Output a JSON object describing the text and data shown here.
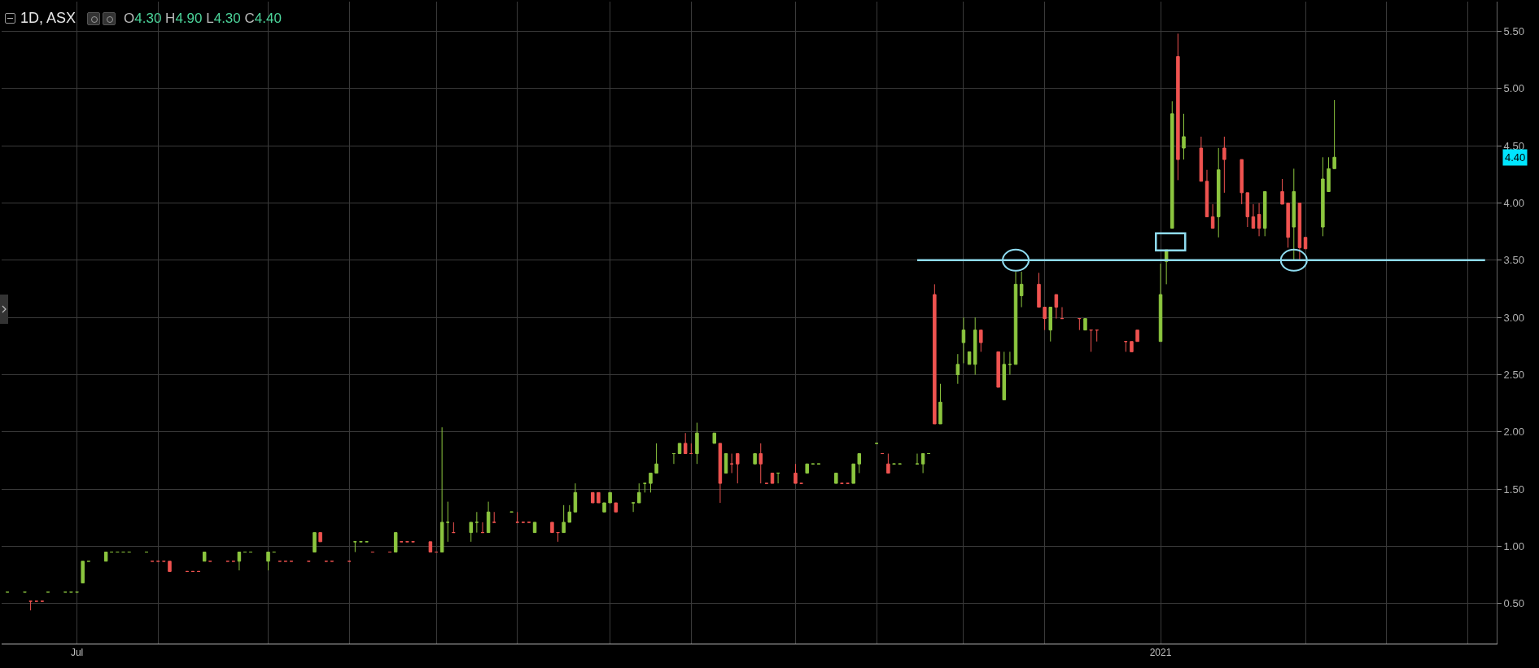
{
  "chart_data": {
    "type": "candlestick",
    "title": "1D, ASX",
    "annotations": [
      "O4.30 H4.90 L4.30 C4.40",
      "4.40"
    ],
    "x": [
      "2020-06-19",
      "2020-06-22",
      "2020-06-23",
      "2020-06-24",
      "2020-06-25",
      "2020-06-26",
      "2020-06-29",
      "2020-06-30",
      "2020-07-01",
      "2020-07-02",
      "2020-07-03",
      "2020-07-06",
      "2020-07-07",
      "2020-07-08",
      "2020-07-09",
      "2020-07-10",
      "2020-07-13",
      "2020-07-14",
      "2020-07-15",
      "2020-07-16",
      "2020-07-17",
      "2020-07-20",
      "2020-07-21",
      "2020-07-22",
      "2020-07-23",
      "2020-07-24",
      "2020-07-27",
      "2020-07-28",
      "2020-07-29",
      "2020-07-30",
      "2020-07-31",
      "2020-08-03",
      "2020-08-04",
      "2020-08-05",
      "2020-08-06",
      "2020-08-07",
      "2020-08-10",
      "2020-08-11",
      "2020-08-12",
      "2020-08-13",
      "2020-08-14",
      "2020-08-17",
      "2020-08-18",
      "2020-08-19",
      "2020-08-20",
      "2020-08-21",
      "2020-08-24",
      "2020-08-25",
      "2020-08-26",
      "2020-08-27",
      "2020-08-28",
      "2020-08-31",
      "2020-09-01",
      "2020-09-02",
      "2020-09-03",
      "2020-09-04",
      "2020-09-07",
      "2020-09-08",
      "2020-09-09",
      "2020-09-10",
      "2020-09-11",
      "2020-09-14",
      "2020-09-15",
      "2020-09-16",
      "2020-09-17",
      "2020-09-18",
      "2020-09-21",
      "2020-09-22",
      "2020-09-23",
      "2020-09-24",
      "2020-09-25",
      "2020-09-28",
      "2020-09-29",
      "2020-09-30",
      "2020-10-01",
      "2020-10-02",
      "2020-10-05",
      "2020-10-06",
      "2020-10-07",
      "2020-10-08",
      "2020-10-09",
      "2020-10-12",
      "2020-10-13",
      "2020-10-14",
      "2020-10-15",
      "2020-10-16",
      "2020-10-19",
      "2020-10-20",
      "2020-10-21",
      "2020-10-22",
      "2020-10-23",
      "2020-10-26",
      "2020-10-27",
      "2020-10-28",
      "2020-10-29",
      "2020-10-30",
      "2020-11-02",
      "2020-11-03",
      "2020-11-04",
      "2020-11-05",
      "2020-11-06",
      "2020-11-09",
      "2020-11-10",
      "2020-11-11",
      "2020-11-12",
      "2020-11-13",
      "2020-11-16",
      "2020-11-17",
      "2020-11-18",
      "2020-11-19",
      "2020-11-20",
      "2020-11-23",
      "2020-11-24",
      "2020-11-25",
      "2020-11-26",
      "2020-11-27",
      "2020-11-30",
      "2020-12-01",
      "2020-12-02",
      "2020-12-03",
      "2020-12-04",
      "2020-12-07",
      "2020-12-08",
      "2020-12-09",
      "2020-12-10",
      "2020-12-11",
      "2020-12-14",
      "2020-12-15",
      "2020-12-16",
      "2020-12-17",
      "2020-12-18",
      "2020-12-21",
      "2020-12-22",
      "2020-12-23",
      "2020-12-24",
      "2020-12-29",
      "2020-12-30",
      "2020-12-31",
      "2021-01-04",
      "2021-01-05",
      "2021-01-06",
      "2021-01-07",
      "2021-01-08",
      "2021-01-11",
      "2021-01-12",
      "2021-01-13",
      "2021-01-14",
      "2021-01-15",
      "2021-01-18",
      "2021-01-19",
      "2021-01-20",
      "2021-01-21",
      "2021-01-22",
      "2021-01-25",
      "2021-01-26",
      "2021-01-27",
      "2021-01-28",
      "2021-01-29",
      "2021-02-01",
      "2021-02-02",
      "2021-02-03"
    ],
    "ohlc": [
      [
        0.6,
        0.6,
        0.6,
        0.6
      ],
      [
        0.6,
        0.6,
        0.6,
        0.6
      ],
      [
        0.52,
        0.52,
        0.44,
        0.52
      ],
      [
        0.52,
        0.52,
        0.52,
        0.52
      ],
      [
        0.52,
        0.52,
        0.52,
        0.52
      ],
      [
        0.6,
        0.6,
        0.6,
        0.6
      ],
      [
        0.6,
        0.6,
        0.6,
        0.6
      ],
      [
        0.6,
        0.6,
        0.6,
        0.6
      ],
      [
        0.6,
        0.6,
        0.6,
        0.6
      ],
      [
        0.68,
        0.87,
        0.68,
        0.87
      ],
      [
        0.87,
        0.87,
        0.87,
        0.87
      ],
      [
        0.87,
        0.95,
        0.87,
        0.95
      ],
      [
        0.95,
        0.95,
        0.95,
        0.95
      ],
      [
        0.95,
        0.95,
        0.95,
        0.95
      ],
      [
        0.95,
        0.95,
        0.95,
        0.95
      ],
      [
        0.95,
        0.95,
        0.95,
        0.95
      ],
      [
        0.95,
        0.95,
        0.95,
        0.95
      ],
      [
        0.87,
        0.87,
        0.87,
        0.87
      ],
      [
        0.87,
        0.87,
        0.87,
        0.87
      ],
      [
        0.87,
        0.87,
        0.87,
        0.87
      ],
      [
        0.87,
        0.87,
        0.78,
        0.78
      ],
      [
        0.78,
        0.78,
        0.78,
        0.78
      ],
      [
        0.78,
        0.78,
        0.78,
        0.78
      ],
      [
        0.78,
        0.78,
        0.78,
        0.78
      ],
      [
        0.87,
        0.95,
        0.87,
        0.95
      ],
      [
        0.87,
        0.87,
        0.87,
        0.87
      ],
      [
        0.87,
        0.87,
        0.87,
        0.87
      ],
      [
        0.87,
        0.87,
        0.87,
        0.87
      ],
      [
        0.87,
        0.95,
        0.79,
        0.95
      ],
      [
        0.95,
        0.95,
        0.95,
        0.95
      ],
      [
        0.95,
        0.95,
        0.95,
        0.95
      ],
      [
        0.87,
        0.95,
        0.79,
        0.95
      ],
      [
        0.95,
        0.95,
        0.95,
        0.95
      ],
      [
        0.87,
        0.87,
        0.87,
        0.87
      ],
      [
        0.87,
        0.87,
        0.87,
        0.87
      ],
      [
        0.87,
        0.87,
        0.87,
        0.87
      ],
      [
        0.87,
        0.87,
        0.87,
        0.87
      ],
      [
        0.95,
        1.12,
        0.95,
        1.12
      ],
      [
        1.12,
        1.12,
        1.04,
        1.04
      ],
      [
        0.87,
        0.87,
        0.87,
        0.87
      ],
      [
        0.87,
        0.87,
        0.87,
        0.87
      ],
      [
        0.87,
        0.87,
        0.87,
        0.87
      ],
      [
        1.04,
        1.04,
        0.95,
        1.04
      ],
      [
        1.04,
        1.04,
        1.04,
        1.04
      ],
      [
        1.04,
        1.04,
        1.04,
        1.04
      ],
      [
        0.95,
        0.95,
        0.95,
        0.95
      ],
      [
        0.95,
        0.95,
        0.95,
        0.95
      ],
      [
        0.95,
        1.12,
        0.95,
        1.12
      ],
      [
        1.04,
        1.04,
        1.04,
        1.04
      ],
      [
        1.04,
        1.04,
        1.04,
        1.04
      ],
      [
        1.04,
        1.04,
        1.04,
        1.04
      ],
      [
        1.04,
        1.04,
        0.95,
        0.95
      ],
      [
        0.95,
        0.95,
        0.95,
        0.95
      ],
      [
        0.95,
        2.04,
        0.95,
        1.21
      ],
      [
        1.21,
        1.39,
        1.04,
        1.21
      ],
      [
        1.12,
        1.21,
        1.12,
        1.12
      ],
      [
        1.12,
        1.21,
        1.04,
        1.21
      ],
      [
        1.21,
        1.3,
        1.12,
        1.21
      ],
      [
        1.12,
        1.21,
        1.12,
        1.12
      ],
      [
        1.12,
        1.39,
        1.12,
        1.3
      ],
      [
        1.21,
        1.3,
        1.21,
        1.21
      ],
      [
        1.3,
        1.3,
        1.3,
        1.3
      ],
      [
        1.21,
        1.3,
        1.21,
        1.21
      ],
      [
        1.21,
        1.21,
        1.21,
        1.21
      ],
      [
        1.21,
        1.21,
        1.21,
        1.21
      ],
      [
        1.12,
        1.21,
        1.12,
        1.21
      ],
      [
        1.21,
        1.21,
        1.12,
        1.12
      ],
      [
        1.12,
        1.12,
        1.04,
        1.12
      ],
      [
        1.12,
        1.36,
        1.12,
        1.21
      ],
      [
        1.21,
        1.36,
        1.21,
        1.3
      ],
      [
        1.3,
        1.55,
        1.3,
        1.47
      ],
      [
        1.47,
        1.47,
        1.38,
        1.38
      ],
      [
        1.47,
        1.47,
        1.38,
        1.38
      ],
      [
        1.3,
        1.38,
        1.3,
        1.38
      ],
      [
        1.38,
        1.47,
        1.38,
        1.47
      ],
      [
        1.38,
        1.38,
        1.3,
        1.3
      ],
      [
        1.38,
        1.38,
        1.3,
        1.38
      ],
      [
        1.38,
        1.55,
        1.38,
        1.47
      ],
      [
        1.55,
        1.55,
        1.47,
        1.55
      ],
      [
        1.55,
        1.64,
        1.47,
        1.64
      ],
      [
        1.64,
        1.9,
        1.64,
        1.72
      ],
      [
        1.81,
        1.81,
        1.72,
        1.81
      ],
      [
        1.81,
        1.9,
        1.81,
        1.9
      ],
      [
        1.9,
        1.99,
        1.81,
        1.81
      ],
      [
        1.81,
        1.9,
        1.81,
        1.81
      ],
      [
        1.81,
        2.08,
        1.72,
        1.99
      ],
      [
        1.9,
        1.99,
        1.9,
        1.99
      ],
      [
        1.9,
        1.9,
        1.38,
        1.55
      ],
      [
        1.64,
        1.81,
        1.64,
        1.81
      ],
      [
        1.72,
        1.81,
        1.64,
        1.72
      ],
      [
        1.81,
        1.81,
        1.55,
        1.72
      ],
      [
        1.72,
        1.81,
        1.72,
        1.81
      ],
      [
        1.81,
        1.9,
        1.55,
        1.72
      ],
      [
        1.55,
        1.55,
        1.55,
        1.55
      ],
      [
        1.64,
        1.64,
        1.55,
        1.55
      ],
      [
        1.64,
        1.64,
        1.55,
        1.64
      ],
      [
        1.64,
        1.72,
        1.55,
        1.55
      ],
      [
        1.55,
        1.55,
        1.55,
        1.55
      ],
      [
        1.64,
        1.72,
        1.64,
        1.72
      ],
      [
        1.72,
        1.72,
        1.72,
        1.72
      ],
      [
        1.72,
        1.72,
        1.72,
        1.72
      ],
      [
        1.55,
        1.64,
        1.55,
        1.64
      ],
      [
        1.55,
        1.55,
        1.55,
        1.55
      ],
      [
        1.55,
        1.55,
        1.55,
        1.55
      ],
      [
        1.55,
        1.72,
        1.55,
        1.72
      ],
      [
        1.72,
        1.81,
        1.64,
        1.81
      ],
      [
        1.9,
        1.9,
        1.9,
        1.9
      ],
      [
        1.81,
        1.81,
        1.81,
        1.81
      ],
      [
        1.72,
        1.81,
        1.64,
        1.64
      ],
      [
        1.72,
        1.72,
        1.72,
        1.72
      ],
      [
        1.72,
        1.72,
        1.72,
        1.72
      ],
      [
        1.72,
        1.81,
        1.72,
        1.72
      ],
      [
        1.72,
        1.81,
        1.64,
        1.81
      ],
      [
        1.81,
        1.81,
        1.81,
        1.81
      ],
      [
        3.2,
        3.29,
        2.07,
        2.07
      ],
      [
        2.07,
        2.42,
        2.07,
        2.26
      ],
      [
        2.5,
        2.68,
        2.42,
        2.59
      ],
      [
        2.78,
        3.0,
        2.6,
        2.89
      ],
      [
        2.59,
        2.7,
        2.59,
        2.7
      ],
      [
        2.59,
        3.0,
        2.5,
        2.89
      ],
      [
        2.89,
        2.89,
        2.7,
        2.78
      ],
      [
        2.7,
        2.7,
        2.39,
        2.39
      ],
      [
        2.28,
        2.7,
        2.28,
        2.59
      ],
      [
        2.59,
        2.7,
        2.5,
        2.59
      ],
      [
        2.59,
        3.4,
        2.59,
        3.29
      ],
      [
        3.19,
        3.4,
        3.09,
        3.29
      ],
      [
        3.29,
        3.39,
        3.09,
        3.09
      ],
      [
        3.09,
        3.09,
        2.89,
        2.99
      ],
      [
        2.89,
        3.09,
        2.79,
        3.09
      ],
      [
        3.2,
        3.2,
        2.99,
        3.09
      ],
      [
        2.99,
        3.09,
        2.99,
        2.99
      ],
      [
        2.99,
        2.99,
        2.89,
        2.99
      ],
      [
        2.89,
        2.99,
        2.89,
        2.99
      ],
      [
        2.89,
        2.89,
        2.7,
        2.89
      ],
      [
        2.89,
        2.89,
        2.79,
        2.89
      ],
      [
        2.79,
        2.79,
        2.7,
        2.79
      ],
      [
        2.79,
        2.79,
        2.7,
        2.7
      ],
      [
        2.89,
        2.89,
        2.79,
        2.79
      ],
      [
        2.79,
        3.47,
        2.79,
        3.2
      ],
      [
        3.49,
        3.59,
        3.29,
        3.59
      ],
      [
        3.78,
        4.89,
        3.78,
        4.78
      ],
      [
        5.28,
        5.48,
        4.2,
        4.38
      ],
      [
        4.48,
        4.78,
        4.38,
        4.58
      ],
      [
        4.48,
        4.58,
        4.19,
        4.19
      ],
      [
        4.19,
        4.29,
        3.88,
        3.88
      ],
      [
        3.88,
        3.99,
        3.78,
        3.78
      ],
      [
        3.88,
        4.48,
        3.7,
        4.29
      ],
      [
        4.48,
        4.58,
        4.09,
        4.38
      ],
      [
        4.38,
        4.38,
        3.99,
        4.09
      ],
      [
        4.09,
        4.09,
        3.79,
        3.88
      ],
      [
        3.88,
        3.99,
        3.78,
        3.78
      ],
      [
        3.9,
        4.0,
        3.71,
        3.78
      ],
      [
        3.78,
        4.1,
        3.71,
        4.1
      ],
      [
        4.1,
        4.21,
        3.99,
        3.99
      ],
      [
        4.0,
        4.0,
        3.61,
        3.7
      ],
      [
        3.79,
        4.3,
        3.5,
        4.1
      ],
      [
        4.0,
        4.0,
        3.5,
        3.61
      ],
      [
        3.7,
        3.7,
        3.6,
        3.6
      ],
      [
        3.79,
        4.4,
        3.71,
        4.21
      ],
      [
        4.1,
        4.4,
        4.1,
        4.3
      ],
      [
        4.3,
        4.9,
        4.3,
        4.4
      ]
    ],
    "series": [
      {
        "type": "line",
        "color": "#8fdcf0",
        "x": [
          "2020-11-23",
          "2021-03-01"
        ],
        "values": [
          3.5,
          3.5
        ]
      }
    ],
    "xlim": [
      "2020-06-18",
      "2021-03-03"
    ],
    "xticks": [
      {
        "value": "2020-07-01",
        "label": "Jul"
      },
      {
        "value": "2020-07-15",
        "label": null
      },
      {
        "value": "2020-08-03",
        "label": null
      },
      {
        "value": "2020-08-17",
        "label": null
      },
      {
        "value": "2020-09-01",
        "label": null
      },
      {
        "value": "2020-09-15",
        "label": null
      },
      {
        "value": "2020-10-01",
        "label": null
      },
      {
        "value": "2020-10-15",
        "label": null
      },
      {
        "value": "2020-11-02",
        "label": null
      },
      {
        "value": "2020-11-16",
        "label": null
      },
      {
        "value": "2020-12-01",
        "label": null
      },
      {
        "value": "2020-12-15",
        "label": null
      },
      {
        "value": "2021-01-04",
        "label": "2021"
      },
      {
        "value": "2021-01-29",
        "label": null
      },
      {
        "value": "2021-02-12",
        "label": null
      },
      {
        "value": "2021-02-26",
        "label": null
      }
    ],
    "ylim": [
      0.15,
      5.76
    ],
    "yticks": [
      {
        "value": 0.5,
        "label": "0.50"
      },
      {
        "value": 1,
        "label": "1.00"
      },
      {
        "value": 1.5,
        "label": "1.50"
      },
      {
        "value": 2,
        "label": "2.00"
      },
      {
        "value": 2.5,
        "label": "2.50"
      },
      {
        "value": 3,
        "label": "3.00"
      },
      {
        "value": 3.5,
        "label": "3.50"
      },
      {
        "value": 4,
        "label": "4.00"
      },
      {
        "value": 4.5,
        "label": "4.50"
      },
      {
        "value": 5,
        "label": "5.00"
      },
      {
        "value": 5.5,
        "label": "5.50"
      }
    ],
    "grid": true
  }
}
